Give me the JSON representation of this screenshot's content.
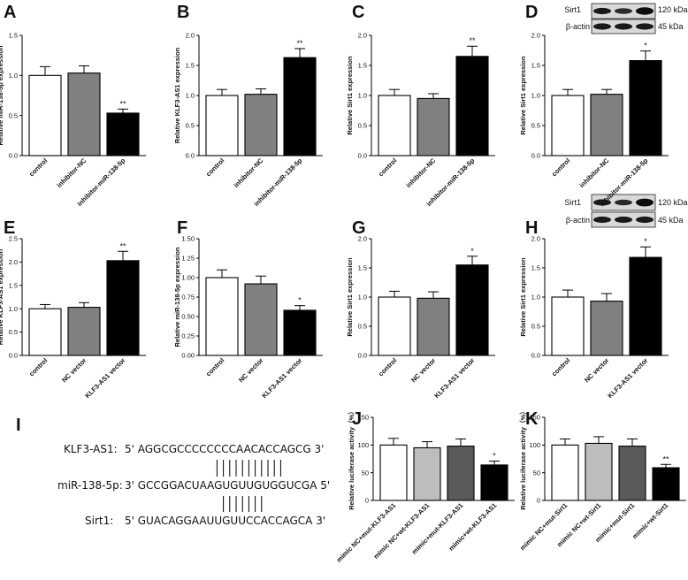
{
  "panel_letters": [
    "A",
    "B",
    "C",
    "D",
    "E",
    "F",
    "G",
    "H",
    "I",
    "J",
    "K"
  ],
  "blot_labels": {
    "sirt1": "Sirt1",
    "bactin": "β-actin",
    "kda120": "120 kDa",
    "kda45": "45 kDa"
  },
  "sequences": {
    "klf3as1": {
      "label": "KLF3-AS1:",
      "seq": "5' AGGCGCCCCCCCCAACACCAGCG 3'"
    },
    "mir138": {
      "label": "miR-138-5p:",
      "seq": "3' GCCGGACUAAGUGUUGUGGUCGA 5'"
    },
    "sirt1": {
      "label": "Sirt1:",
      "seq": "5' GUACAGGAAUUGUUCCACCAGCA 3'"
    }
  },
  "chart_data": [
    {
      "panel": "A",
      "type": "bar",
      "categories": [
        "control",
        "inhibitor-NC",
        "inhibitor-miR-138-5p"
      ],
      "values": [
        1.0,
        1.03,
        0.53
      ],
      "errors": [
        0.11,
        0.09,
        0.05
      ],
      "significance": [
        "",
        "",
        "**"
      ],
      "colors": [
        "#ffffff",
        "#808080",
        "#000000"
      ],
      "ylabel": "Relative miR-138-5p expression",
      "ylim": [
        0,
        1.5
      ],
      "yticks": [
        "0.0",
        "0.5",
        "1.0",
        "1.5"
      ],
      "ytick_values": [
        0,
        0.5,
        1.0,
        1.5
      ]
    },
    {
      "panel": "B",
      "type": "bar",
      "categories": [
        "control",
        "inhibitor-NC",
        "inhibitor-miR-138-5p"
      ],
      "values": [
        1.0,
        1.02,
        1.63
      ],
      "errors": [
        0.1,
        0.09,
        0.15
      ],
      "significance": [
        "",
        "",
        "**"
      ],
      "colors": [
        "#ffffff",
        "#808080",
        "#000000"
      ],
      "ylabel": "Relative KLF3-AS1 expression",
      "ylim": [
        0,
        2.0
      ],
      "yticks": [
        "0.0",
        "0.5",
        "1.0",
        "1.5",
        "2.0"
      ],
      "ytick_values": [
        0,
        0.5,
        1.0,
        1.5,
        2.0
      ]
    },
    {
      "panel": "C",
      "type": "bar",
      "categories": [
        "control",
        "inhibitor-NC",
        "inhibitor-miR-138-5p"
      ],
      "values": [
        1.0,
        0.95,
        1.65
      ],
      "errors": [
        0.1,
        0.08,
        0.17
      ],
      "significance": [
        "",
        "",
        "**"
      ],
      "colors": [
        "#ffffff",
        "#808080",
        "#000000"
      ],
      "ylabel": "Relative Sirt1 expression",
      "ylim": [
        0,
        2.0
      ],
      "yticks": [
        "0.0",
        "0.5",
        "1.0",
        "1.5",
        "2.0"
      ],
      "ytick_values": [
        0,
        0.5,
        1.0,
        1.5,
        2.0
      ]
    },
    {
      "panel": "D",
      "type": "bar",
      "categories": [
        "control",
        "inhibitor-NC",
        "inhibitor-miR-138-5p"
      ],
      "values": [
        1.0,
        1.02,
        1.58
      ],
      "errors": [
        0.1,
        0.08,
        0.16
      ],
      "significance": [
        "",
        "",
        "*"
      ],
      "colors": [
        "#ffffff",
        "#808080",
        "#000000"
      ],
      "ylabel": "Relative Sirt1 expression",
      "ylim": [
        0,
        2.0
      ],
      "yticks": [
        "0.0",
        "0.5",
        "1.0",
        "1.5",
        "2.0"
      ],
      "ytick_values": [
        0,
        0.5,
        1.0,
        1.5,
        2.0
      ]
    },
    {
      "panel": "E",
      "type": "bar",
      "categories": [
        "control",
        "NC vector",
        "KLF3-AS1 vector"
      ],
      "values": [
        1.0,
        1.03,
        2.03
      ],
      "errors": [
        0.09,
        0.1,
        0.2
      ],
      "significance": [
        "",
        "",
        "**"
      ],
      "colors": [
        "#ffffff",
        "#808080",
        "#000000"
      ],
      "ylabel": "Relative KLF3-AS1 expression",
      "ylim": [
        0,
        2.5
      ],
      "yticks": [
        "0.0",
        "0.5",
        "1.0",
        "1.5",
        "2.0",
        "2.5"
      ],
      "ytick_values": [
        0,
        0.5,
        1.0,
        1.5,
        2.0,
        2.5
      ]
    },
    {
      "panel": "F",
      "type": "bar",
      "categories": [
        "control",
        "NC vector",
        "KLF3-AS1 vector"
      ],
      "values": [
        1.0,
        0.92,
        0.58
      ],
      "errors": [
        0.1,
        0.1,
        0.06
      ],
      "significance": [
        "",
        "",
        "*"
      ],
      "colors": [
        "#ffffff",
        "#808080",
        "#000000"
      ],
      "ylabel": "Relative miR-138-5p expression",
      "ylim": [
        0,
        1.5
      ],
      "yticks": [
        "0.00",
        "0.25",
        "0.50",
        "0.75",
        "1.00",
        "1.25",
        "1.50"
      ],
      "ytick_values": [
        0,
        0.25,
        0.5,
        0.75,
        1.0,
        1.25,
        1.5
      ]
    },
    {
      "panel": "G",
      "type": "bar",
      "categories": [
        "control",
        "NC vector",
        "KLF3-AS1 vector"
      ],
      "values": [
        1.0,
        0.98,
        1.55
      ],
      "errors": [
        0.1,
        0.11,
        0.15
      ],
      "significance": [
        "",
        "",
        "*"
      ],
      "colors": [
        "#ffffff",
        "#808080",
        "#000000"
      ],
      "ylabel": "Relative Sirt1 expression",
      "ylim": [
        0,
        2.0
      ],
      "yticks": [
        "0.0",
        "0.5",
        "1.0",
        "1.5",
        "2.0"
      ],
      "ytick_values": [
        0,
        0.5,
        1.0,
        1.5,
        2.0
      ]
    },
    {
      "panel": "H",
      "type": "bar",
      "categories": [
        "control",
        "NC vector",
        "KLF3-AS1 vector"
      ],
      "values": [
        1.0,
        0.93,
        1.68
      ],
      "errors": [
        0.12,
        0.13,
        0.18
      ],
      "significance": [
        "",
        "",
        "*"
      ],
      "colors": [
        "#ffffff",
        "#808080",
        "#000000"
      ],
      "ylabel": "Relative Sirt1 expression",
      "ylim": [
        0,
        2.0
      ],
      "yticks": [
        "0.0",
        "0.5",
        "1.0",
        "1.5",
        "2.0"
      ],
      "ytick_values": [
        0,
        0.5,
        1.0,
        1.5,
        2.0
      ]
    },
    {
      "panel": "J",
      "type": "bar",
      "categories": [
        "mimic NC+mut-KLF3-AS1",
        "mimic NC+wt-KLF3-AS1",
        "mimic+mut-KLF3-AS1",
        "mimic+wt-KLF3-AS1"
      ],
      "values": [
        100,
        95,
        98,
        64
      ],
      "errors": [
        12,
        11,
        13,
        7
      ],
      "significance": [
        "",
        "",
        "",
        "*"
      ],
      "colors": [
        "#ffffff",
        "#bdbdbd",
        "#5a5a5a",
        "#000000"
      ],
      "ylabel": "Relative luciferase activity（%）",
      "ylim": [
        0,
        150
      ],
      "yticks": [
        "0",
        "50",
        "100",
        "150"
      ],
      "ytick_values": [
        0,
        50,
        100,
        150
      ]
    },
    {
      "panel": "K",
      "type": "bar",
      "categories": [
        "mimic NC+mut-Sirt1",
        "mimic NC+wt-Sirt1",
        "mimic+mut-Sirt1",
        "mimic+wt-Sirt1"
      ],
      "values": [
        100,
        103,
        98,
        59
      ],
      "errors": [
        11,
        12,
        13,
        6
      ],
      "significance": [
        "",
        "",
        "",
        "**"
      ],
      "colors": [
        "#ffffff",
        "#bdbdbd",
        "#5a5a5a",
        "#000000"
      ],
      "ylabel": "Relative luciferase activity（%）",
      "ylim": [
        0,
        150
      ],
      "yticks": [
        "0",
        "50",
        "100",
        "150"
      ],
      "ytick_values": [
        0,
        50,
        100,
        150
      ]
    }
  ]
}
